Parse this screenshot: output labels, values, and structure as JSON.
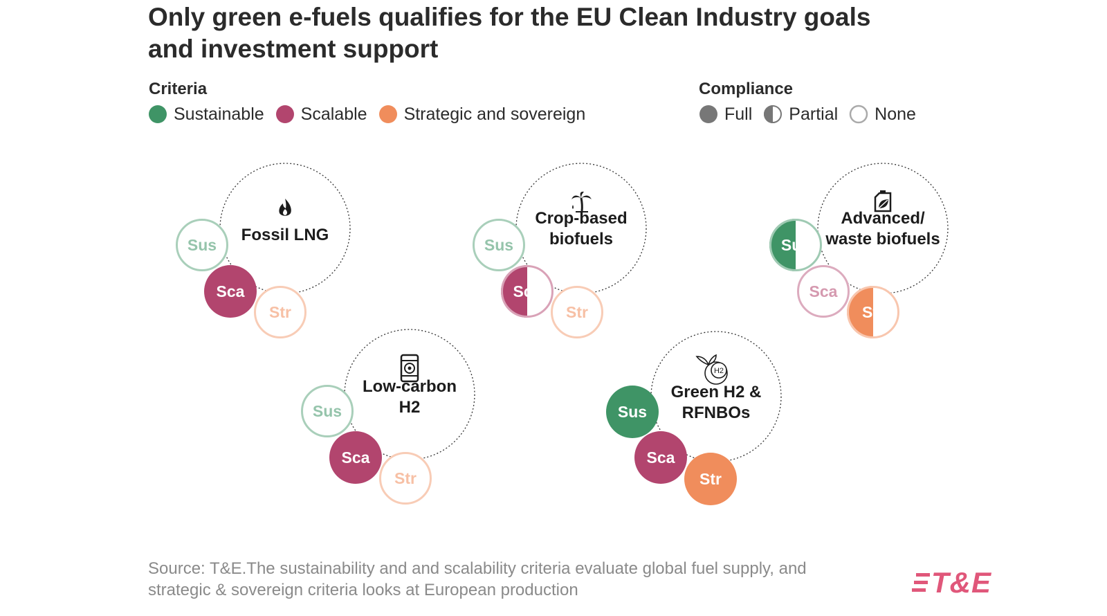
{
  "title": "Only green e-fuels qualifies for the EU Clean Industry goals and investment support",
  "legend": {
    "criteria_title": "Criteria",
    "criteria": [
      {
        "key": "sus",
        "label": "Sustainable",
        "abbr": "Sus",
        "color": "#3f9466"
      },
      {
        "key": "sca",
        "label": "Scalable",
        "abbr": "Sca",
        "color": "#b2456e"
      },
      {
        "key": "str",
        "label": "Strategic and sovereign",
        "abbr": "Str",
        "color": "#f08d5c"
      }
    ],
    "compliance_title": "Compliance",
    "compliance": [
      {
        "key": "full",
        "label": "Full"
      },
      {
        "key": "partial",
        "label": "Partial"
      },
      {
        "key": "none",
        "label": "None"
      }
    ]
  },
  "fuels": [
    {
      "name": "Fossil LNG",
      "icon": "flame-icon",
      "lines": [
        "Fossil LNG"
      ],
      "compliance": {
        "sus": "none",
        "sca": "full",
        "str": "none"
      }
    },
    {
      "name": "Crop-based biofuels",
      "icon": "palm-tree-icon",
      "lines": [
        "Crop-based",
        "biofuels"
      ],
      "compliance": {
        "sus": "none",
        "sca": "partial",
        "str": "none"
      }
    },
    {
      "name": "Advanced/ waste biofuels",
      "icon": "jerrycan-icon",
      "lines": [
        "Advanced/",
        "waste biofuels"
      ],
      "compliance": {
        "sus": "partial",
        "sca": "none",
        "str": "partial"
      }
    },
    {
      "name": "Low-carbon H2",
      "icon": "barrel-icon",
      "lines": [
        "Low-carbon",
        "H2"
      ],
      "compliance": {
        "sus": "none",
        "sca": "full",
        "str": "none"
      }
    },
    {
      "name": "Green H2 & RFNBOs",
      "icon": "h2-leaf-icon",
      "lines": [
        "Green H2 &",
        "RFNBOs"
      ],
      "compliance": {
        "sus": "full",
        "sca": "full",
        "str": "full"
      }
    }
  ],
  "icon_text": {
    "h2": "H2"
  },
  "source": "Source: T&E.The sustainability and and scalability criteria evaluate global fuel supply, and strategic & sovereign criteria looks at European production",
  "logo": "T&E"
}
